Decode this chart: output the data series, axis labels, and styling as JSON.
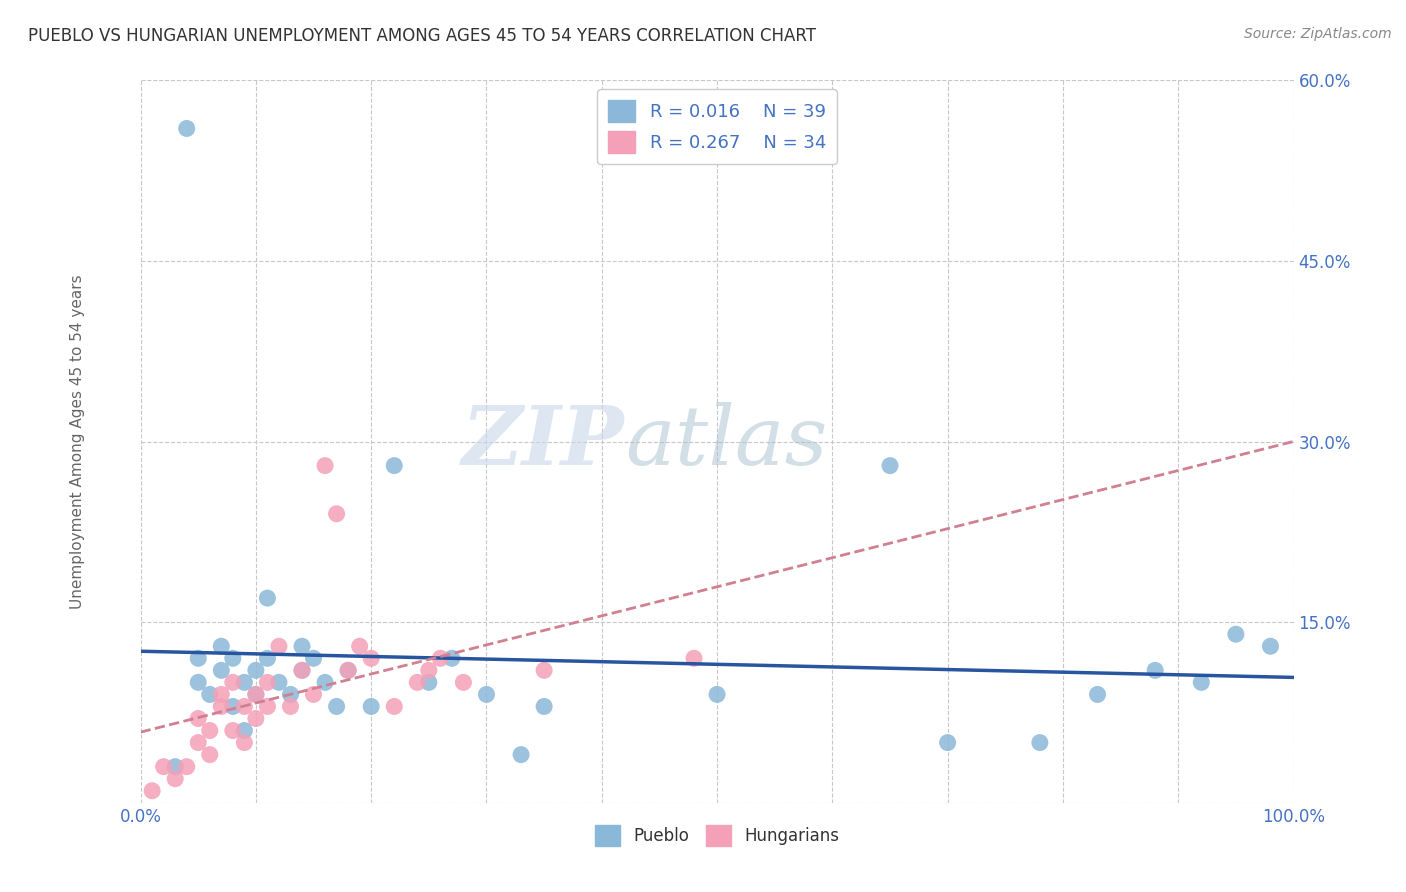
{
  "title": "PUEBLO VS HUNGARIAN UNEMPLOYMENT AMONG AGES 45 TO 54 YEARS CORRELATION CHART",
  "source": "Source: ZipAtlas.com",
  "ylabel": "Unemployment Among Ages 45 to 54 years",
  "xlim": [
    0,
    100
  ],
  "ylim": [
    0,
    60
  ],
  "xticks": [
    0,
    10,
    20,
    30,
    40,
    50,
    60,
    70,
    80,
    90,
    100
  ],
  "yticks": [
    0,
    15,
    30,
    45,
    60
  ],
  "pueblo_R": 0.016,
  "pueblo_N": 39,
  "hungarian_R": 0.267,
  "hungarian_N": 34,
  "pueblo_color": "#8BB8D8",
  "hungarian_color": "#F4A0B8",
  "pueblo_line_color": "#2855A0",
  "hungarian_line_color": "#D08090",
  "background_color": "#FFFFFF",
  "grid_color": "#C8C8C8",
  "watermark_zip": "ZIP",
  "watermark_atlas": "atlas",
  "pueblo_x": [
    3,
    4,
    5,
    5,
    6,
    7,
    7,
    8,
    8,
    9,
    9,
    10,
    10,
    11,
    11,
    12,
    13,
    14,
    14,
    15,
    16,
    17,
    18,
    20,
    22,
    25,
    27,
    30,
    33,
    35,
    50,
    65,
    70,
    78,
    83,
    88,
    92,
    95,
    98
  ],
  "pueblo_y": [
    3,
    56,
    10,
    12,
    9,
    11,
    13,
    8,
    12,
    10,
    6,
    9,
    11,
    17,
    12,
    10,
    9,
    11,
    13,
    12,
    10,
    8,
    11,
    8,
    28,
    10,
    12,
    9,
    4,
    8,
    9,
    28,
    5,
    5,
    9,
    11,
    10,
    14,
    13
  ],
  "hungarian_x": [
    1,
    2,
    3,
    4,
    5,
    5,
    6,
    6,
    7,
    7,
    8,
    8,
    9,
    9,
    10,
    10,
    11,
    11,
    12,
    13,
    14,
    15,
    16,
    17,
    18,
    19,
    20,
    22,
    24,
    25,
    26,
    28,
    35,
    48
  ],
  "hungarian_y": [
    1,
    3,
    2,
    3,
    7,
    5,
    4,
    6,
    8,
    9,
    6,
    10,
    5,
    8,
    7,
    9,
    8,
    10,
    13,
    8,
    11,
    9,
    28,
    24,
    11,
    13,
    12,
    8,
    10,
    11,
    12,
    10,
    11,
    12
  ]
}
